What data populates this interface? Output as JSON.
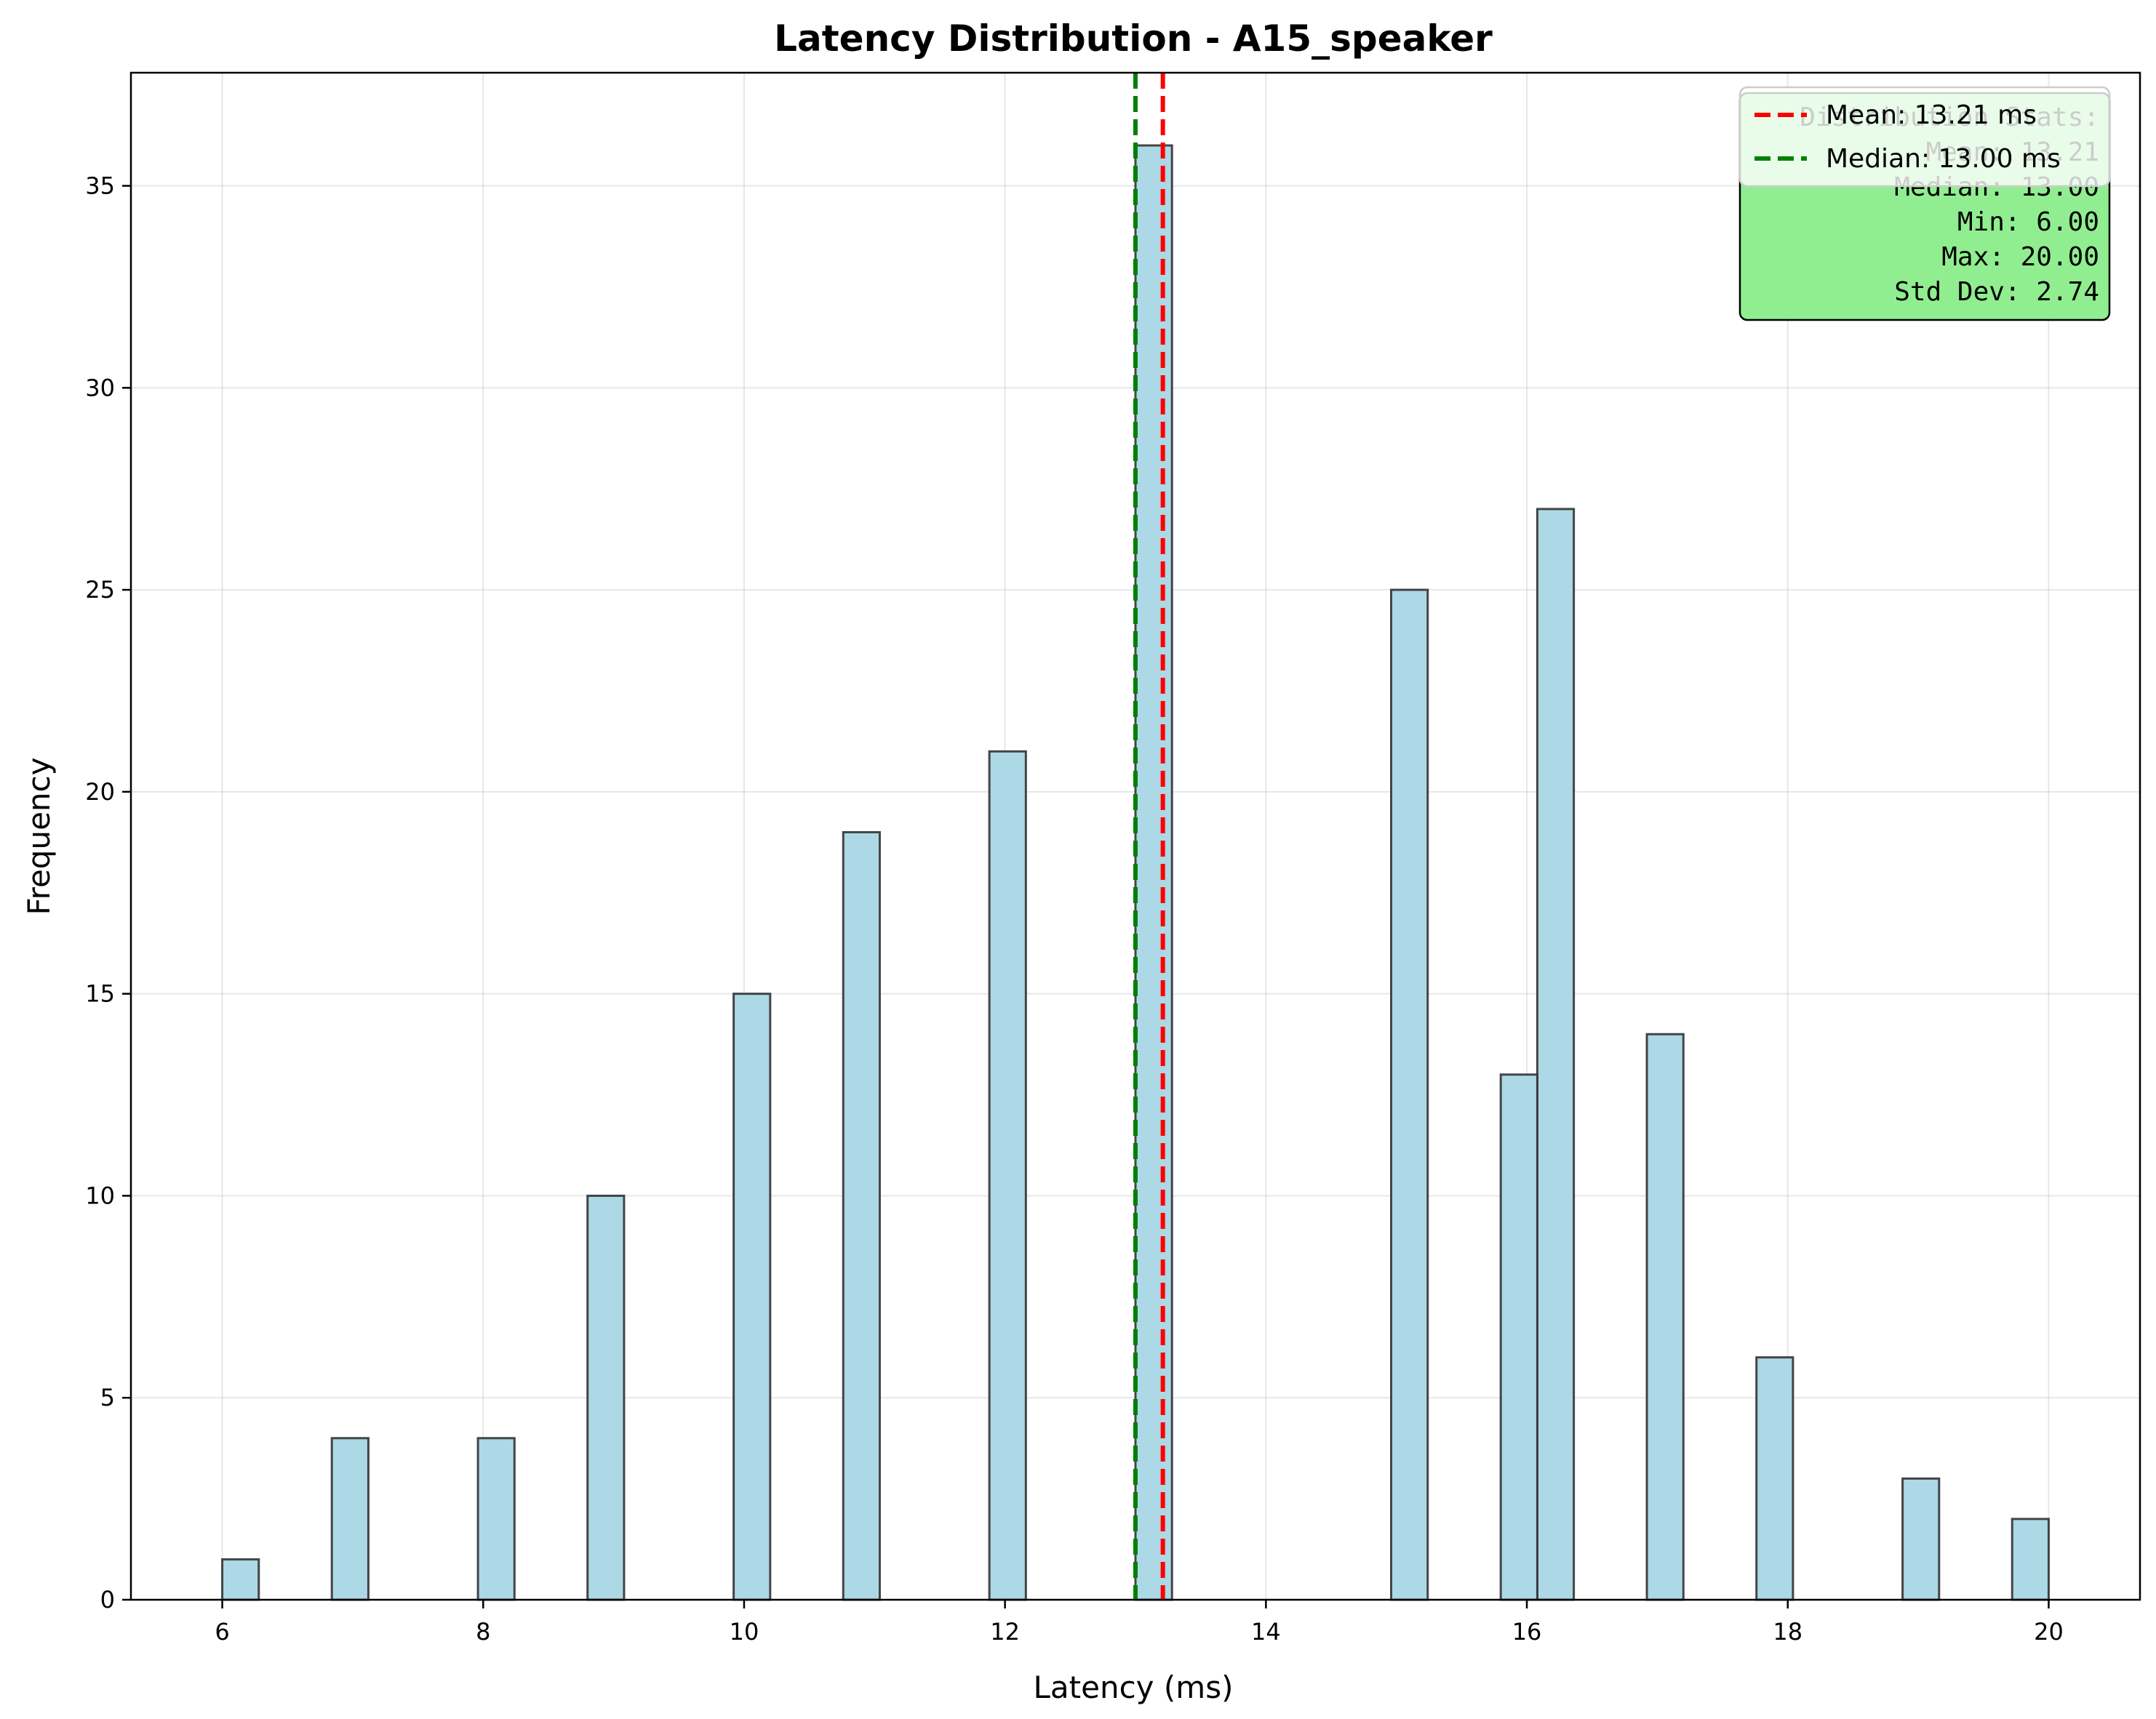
{
  "chart_data": {
    "type": "bar",
    "title": "Latency Distribution - A15_speaker",
    "xlabel": "Latency (ms)",
    "ylabel": "Frequency",
    "xlim": [
      5.3,
      20.7
    ],
    "ylim": [
      0,
      37.8
    ],
    "xticks": [
      6,
      8,
      10,
      12,
      14,
      16,
      18,
      20
    ],
    "yticks": [
      0,
      5,
      10,
      15,
      20,
      25,
      30,
      35
    ],
    "bin_width": 0.28,
    "bins": [
      {
        "x": 6.0,
        "count": 1
      },
      {
        "x": 6.84,
        "count": 4
      },
      {
        "x": 7.96,
        "count": 4
      },
      {
        "x": 8.8,
        "count": 10
      },
      {
        "x": 9.92,
        "count": 15
      },
      {
        "x": 10.76,
        "count": 19
      },
      {
        "x": 11.88,
        "count": 21
      },
      {
        "x": 13.0,
        "count": 36
      },
      {
        "x": 14.96,
        "count": 25
      },
      {
        "x": 16.08,
        "count": 27
      },
      {
        "x": 15.8,
        "count": 13
      },
      {
        "x": 16.92,
        "count": 14
      },
      {
        "x": 17.76,
        "count": 6
      },
      {
        "x": 18.88,
        "count": 3
      },
      {
        "x": 19.72,
        "count": 2
      }
    ],
    "grid": true,
    "bar_color": "#add8e6",
    "bar_edge_color": "#333333",
    "reference_lines": [
      {
        "label": "Mean: 13.21 ms",
        "x": 13.21,
        "color": "#ff0000"
      },
      {
        "label": "Median: 13.00 ms",
        "x": 13.0,
        "color": "#008000"
      }
    ],
    "legend_position": "top-right",
    "stats_box": {
      "header": "Distribution Stats:",
      "lines": [
        "Mean: 13.21",
        "Median: 13.00",
        "Min: 6.00",
        "Max: 20.00",
        "Std Dev: 2.74"
      ],
      "color": "#90ee90"
    }
  }
}
